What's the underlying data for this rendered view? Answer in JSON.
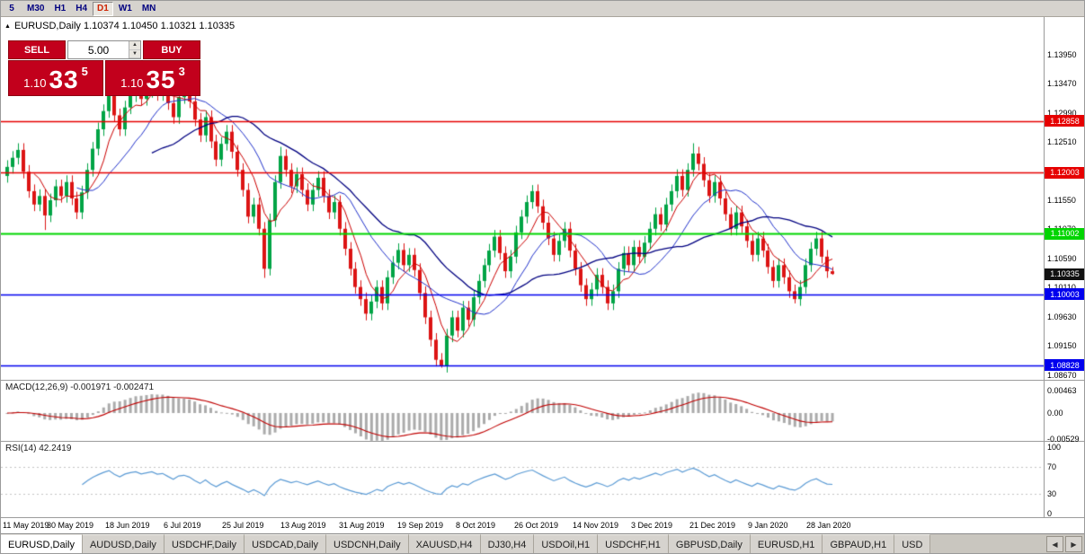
{
  "toolbar": {
    "timeframes": [
      {
        "label": "5",
        "active": false
      },
      {
        "label": "M30",
        "active": false
      },
      {
        "label": "H1",
        "active": false
      },
      {
        "label": "H4",
        "active": false
      },
      {
        "label": "D1",
        "active": true
      },
      {
        "label": "W1",
        "active": false
      },
      {
        "label": "MN",
        "active": false
      }
    ]
  },
  "icons": {
    "expand": "▲",
    "spin_up": "▲",
    "spin_down": "▼",
    "nav_left": "◀",
    "nav_right": "▶"
  },
  "chart": {
    "symbol_ohlc": "EURUSD,Daily  1.10374 1.10450 1.10321 1.10335"
  },
  "trade_panel": {
    "sell_label": "SELL",
    "buy_label": "BUY",
    "volume": "5.00",
    "sell_price": {
      "prefix": "1.10",
      "big": "33",
      "sup": "5"
    },
    "buy_price": {
      "prefix": "1.10",
      "big": "35",
      "sup": "3"
    }
  },
  "chart_data": {
    "type": "candlestick",
    "symbol": "EURUSD",
    "timeframe": "Daily",
    "ohlc": {
      "open": "1.10374",
      "high": "1.10450",
      "low": "1.10321",
      "close": "1.10335"
    },
    "colors": {
      "up": "#00a445",
      "down": "#dc1414"
    },
    "price_axis": {
      "min": 1.0859,
      "max": 1.1457,
      "ticks": [
        {
          "v": 1.1395,
          "label": "1.13950"
        },
        {
          "v": 1.1347,
          "label": "1.13470"
        },
        {
          "v": 1.1299,
          "label": "1.12990"
        },
        {
          "v": 1.1251,
          "label": "1.12510"
        },
        {
          "v": 1.1203,
          "label": "1.12030"
        },
        {
          "v": 1.1155,
          "label": "1.11550"
        },
        {
          "v": 1.1107,
          "label": "1.11070"
        },
        {
          "v": 1.1059,
          "label": "1.10590"
        },
        {
          "v": 1.1011,
          "label": "1.10110"
        },
        {
          "v": 1.0963,
          "label": "1.09630"
        },
        {
          "v": 1.0915,
          "label": "1.09150"
        },
        {
          "v": 1.0867,
          "label": "1.08670"
        }
      ]
    },
    "hlines": [
      {
        "v": 1.12858,
        "label": "1.12858",
        "color": "#e60000",
        "width": 1.3
      },
      {
        "v": 1.12003,
        "label": "1.12003",
        "color": "#e60000",
        "width": 1.3
      },
      {
        "v": 1.11002,
        "label": "1.11002",
        "color": "#00d500",
        "width": 2
      },
      {
        "v": 1.10003,
        "label": "1.10003",
        "color": "#0000ee",
        "width": 1.3
      },
      {
        "v": 1.08828,
        "label": "1.08828",
        "color": "#0000ee",
        "width": 1.3
      }
    ],
    "current_price": {
      "v": 1.10335,
      "label": "1.10335",
      "color": "#111111"
    },
    "candles": {
      "first_open": 1.1195,
      "wick": 0.0011,
      "closes": [
        1.121,
        1.1225,
        1.1238,
        1.1202,
        1.117,
        1.1148,
        1.1162,
        1.113,
        1.1155,
        1.1178,
        1.1162,
        1.1185,
        1.1158,
        1.1135,
        1.1168,
        1.1205,
        1.124,
        1.1272,
        1.1302,
        1.1328,
        1.1295,
        1.1272,
        1.1308,
        1.1328,
        1.134,
        1.1322,
        1.1335,
        1.1348,
        1.133,
        1.1338,
        1.1315,
        1.1292,
        1.1325,
        1.1332,
        1.1318,
        1.1288,
        1.1262,
        1.1292,
        1.1252,
        1.1222,
        1.1248,
        1.1268,
        1.1235,
        1.1205,
        1.1172,
        1.1128,
        1.1148,
        1.1108,
        1.1042,
        1.1122,
        1.1185,
        1.1228,
        1.1205,
        1.1178,
        1.1198,
        1.1172,
        1.1148,
        1.1172,
        1.1192,
        1.1162,
        1.1135,
        1.1152,
        1.1108,
        1.1075,
        1.1042,
        1.1012,
        1.0992,
        1.0968,
        1.0988,
        1.1012,
        1.0985,
        1.1028,
        1.1052,
        1.1073,
        1.1048,
        1.1065,
        1.104,
        1.1002,
        1.0962,
        1.0925,
        1.0892,
        1.0882,
        1.0932,
        1.0962,
        1.094,
        1.0978,
        1.0958,
        1.0995,
        1.1022,
        1.1048,
        1.1072,
        1.1095,
        1.1068,
        1.1038,
        1.1062,
        1.1102,
        1.1128,
        1.1152,
        1.117,
        1.1145,
        1.1118,
        1.1092,
        1.1065,
        1.1088,
        1.1108,
        1.1072,
        1.1042,
        1.1015,
        1.0992,
        1.1008,
        1.1032,
        1.1012,
        1.0985,
        1.1005,
        1.1042,
        1.1068,
        1.1048,
        1.1078,
        1.1062,
        1.1085,
        1.1108,
        1.1132,
        1.1115,
        1.1148,
        1.117,
        1.1195,
        1.1172,
        1.1205,
        1.1232,
        1.1215,
        1.1188,
        1.1162,
        1.1185,
        1.1158,
        1.1132,
        1.1108,
        1.1135,
        1.1112,
        1.1088,
        1.1065,
        1.1092,
        1.1072,
        1.1045,
        1.1022,
        1.1048,
        1.1028,
        1.1005,
        1.0992,
        1.1012,
        1.1048,
        1.1075,
        1.1092,
        1.1062,
        1.1038,
        1.10335
      ],
      "extremes": {
        "7": {
          "l": 1.1106
        },
        "27": {
          "h": 1.1358
        },
        "48": {
          "l": 1.1027
        },
        "51": {
          "h": 1.1243
        },
        "81": {
          "l": 1.0879
        },
        "98": {
          "h": 1.118
        },
        "128": {
          "h": 1.1249
        },
        "147": {
          "l": 1.0985
        },
        "154": {
          "h": 1.1045,
          "l": 1.10321
        }
      }
    },
    "moving_averages": [
      {
        "period": 6,
        "color": "#cc0000",
        "width": 1
      },
      {
        "period": 14,
        "color": "#2233cc",
        "width": 1
      },
      {
        "period": 28,
        "color": "#000080",
        "width": 1.3
      }
    ],
    "macd": {
      "label": "MACD(12,26,9)",
      "values_text": "-0.001971 -0.002471",
      "fast": 12,
      "slow": 26,
      "signal": 9,
      "hist_color": "#ababab",
      "signal_color": "#c00000",
      "axis": [
        {
          "v": 0.00463,
          "label": "0.00463"
        },
        {
          "v": 0,
          "label": "0.00"
        },
        {
          "v": -0.00529,
          "label": "-0.00529"
        }
      ]
    },
    "rsi": {
      "label": "RSI(14)",
      "value_text": "42.2419",
      "period": 14,
      "color": "#5b9bd5",
      "levels": [
        70,
        30
      ],
      "axis": [
        {
          "v": 100,
          "label": "100"
        },
        {
          "v": 70,
          "label": "70"
        },
        {
          "v": 30,
          "label": "30"
        },
        {
          "v": 0,
          "label": "0"
        }
      ]
    },
    "dates": [
      "11 May 2019",
      "30 May 2019",
      "18 Jun 2019",
      "6 Jul 2019",
      "25 Jul 2019",
      "13 Aug 2019",
      "31 Aug 2019",
      "19 Sep 2019",
      "8 Oct 2019",
      "26 Oct 2019",
      "14 Nov 2019",
      "3 Dec 2019",
      "21 Dec 2019",
      "9 Jan 2020",
      "28 Jan 2020"
    ]
  },
  "tabs": {
    "items": [
      {
        "label": "EURUSD,Daily",
        "active": true
      },
      {
        "label": "AUDUSD,Daily",
        "active": false
      },
      {
        "label": "USDCHF,Daily",
        "active": false
      },
      {
        "label": "USDCAD,Daily",
        "active": false
      },
      {
        "label": "USDCNH,Daily",
        "active": false
      },
      {
        "label": "XAUUSD,H4",
        "active": false
      },
      {
        "label": "DJ30,H4",
        "active": false
      },
      {
        "label": "USDOil,H1",
        "active": false
      },
      {
        "label": "USDCHF,H1",
        "active": false
      },
      {
        "label": "GBPUSD,Daily",
        "active": false
      },
      {
        "label": "EURUSD,H1",
        "active": false
      },
      {
        "label": "GBPAUD,H1",
        "active": false
      },
      {
        "label": "USD",
        "active": false
      }
    ]
  }
}
